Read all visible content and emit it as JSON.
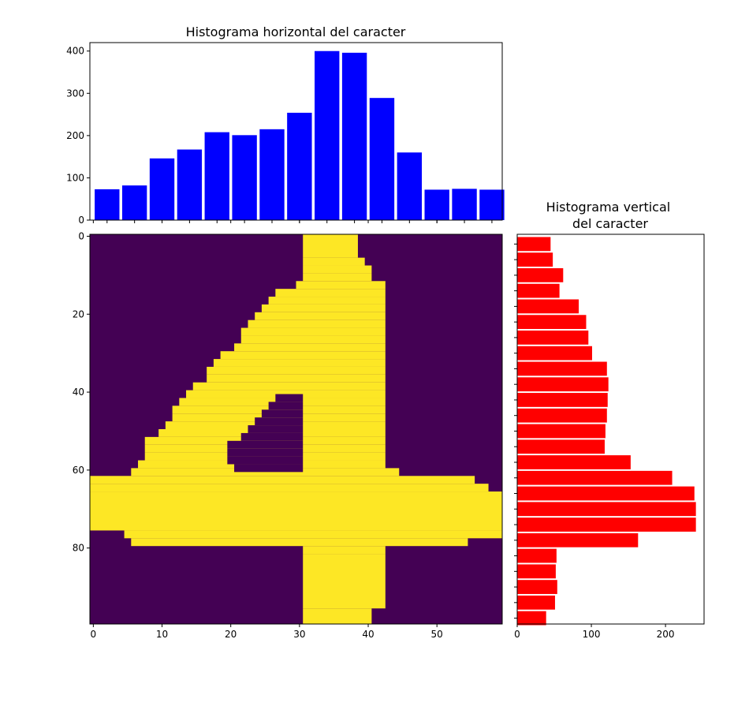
{
  "chart_data": [
    {
      "type": "bar",
      "title": "Histograma horizontal del caracter",
      "xlabel": "",
      "ylabel": "",
      "color": "#0000ff",
      "x": [
        2,
        6,
        10,
        14,
        18,
        22,
        26,
        30,
        34,
        38,
        42,
        46,
        50,
        54,
        58
      ],
      "values": [
        73,
        82,
        146,
        167,
        208,
        201,
        215,
        254,
        400,
        396,
        289,
        160,
        72,
        74,
        72
      ],
      "xlim": [
        -0.5,
        59.5
      ],
      "ylim": [
        0,
        420
      ],
      "yticks": [
        0,
        100,
        200,
        300,
        400
      ],
      "grid": false
    },
    {
      "type": "heatmap",
      "title": "",
      "colormap": "viridis",
      "colors": {
        "low": "#440154",
        "high": "#fde725"
      },
      "xlim": [
        -0.5,
        59.5
      ],
      "ylim": [
        99.5,
        -0.5
      ],
      "xticks": [
        0,
        10,
        20,
        30,
        40,
        50
      ],
      "yticks": [
        0,
        20,
        40,
        60,
        80
      ],
      "grid": false
    },
    {
      "type": "bar",
      "orientation": "horizontal",
      "title": "Histograma vertical\ndel caracter",
      "xlabel": "",
      "ylabel": "",
      "color": "#ff0000",
      "y": [
        2,
        6,
        10,
        14,
        18,
        22,
        26,
        30,
        34,
        38,
        42,
        46,
        50,
        54,
        58,
        62,
        66,
        70,
        74,
        78,
        82,
        86,
        90,
        94,
        98
      ],
      "values": [
        45,
        48,
        62,
        57,
        83,
        93,
        96,
        101,
        121,
        123,
        122,
        121,
        119,
        118,
        153,
        209,
        239,
        241,
        241,
        163,
        53,
        52,
        54,
        51,
        39
      ],
      "xlim": [
        0,
        252
      ],
      "ylim": [
        99.5,
        -0.5
      ],
      "xticks": [
        0,
        100,
        200
      ],
      "grid": false
    }
  ]
}
